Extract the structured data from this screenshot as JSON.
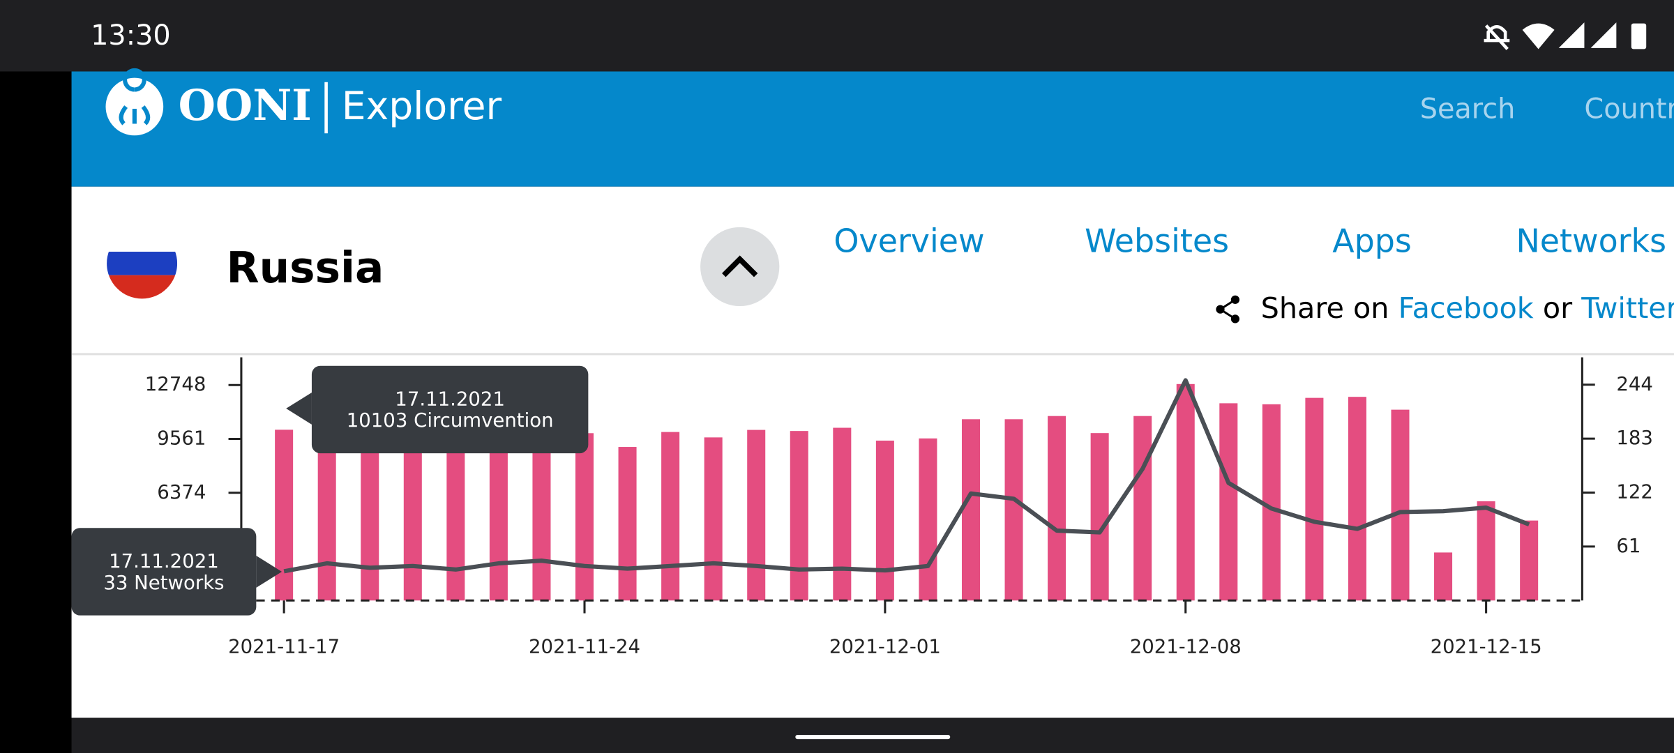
{
  "status_bar": {
    "time": "13:30"
  },
  "nav": {
    "brand": "OONI",
    "product": "Explorer",
    "links": [
      "Search",
      "Countries"
    ]
  },
  "country": {
    "name": "Russia"
  },
  "tabs": [
    "Overview",
    "Websites",
    "Apps",
    "Networks"
  ],
  "share": {
    "prefix": "Share on",
    "facebook": "Facebook",
    "or": "or",
    "twitter": "Twitter"
  },
  "chart_data": {
    "type": "bar",
    "categories": [
      "2021-11-17",
      null,
      null,
      null,
      null,
      null,
      null,
      "2021-11-24",
      null,
      null,
      null,
      null,
      null,
      null,
      "2021-12-01",
      null,
      null,
      null,
      null,
      null,
      null,
      "2021-12-08",
      null,
      null,
      null,
      null,
      null,
      null,
      "2021-12-15",
      null
    ],
    "series": [
      {
        "color": "#e44d80",
        "values": [
          10103,
          10000,
          10000,
          10000,
          10000,
          10000,
          10000,
          9900,
          9085,
          9970,
          9650,
          10094,
          10030,
          10220,
          9460,
          9590,
          10725,
          10725,
          10915,
          9905,
          10915,
          12808,
          11670,
          11610,
          11990,
          12050,
          11290,
          2840,
          5870,
          4730
        ]
      },
      {
        "type": "line",
        "axis": "y2",
        "color": "#4a4f55",
        "values": [
          33,
          42,
          37,
          39,
          35,
          42,
          45,
          39,
          36,
          39,
          42,
          39,
          35,
          36,
          34,
          39,
          121,
          115,
          79,
          77,
          149,
          249,
          133,
          104,
          89,
          81,
          100,
          101,
          105,
          86
        ]
      }
    ],
    "ylim": [
      0,
      14390
    ],
    "yticks": [
      6374,
      9561,
      12748
    ],
    "y2lim": [
      0,
      275
    ],
    "y2ticks": [
      61,
      122,
      183,
      244
    ],
    "annotations": [
      {
        "date": "17.11.2021",
        "text": "10103 Circumvention"
      },
      {
        "date": "17.11.2021",
        "text": "33 Networks"
      }
    ]
  }
}
